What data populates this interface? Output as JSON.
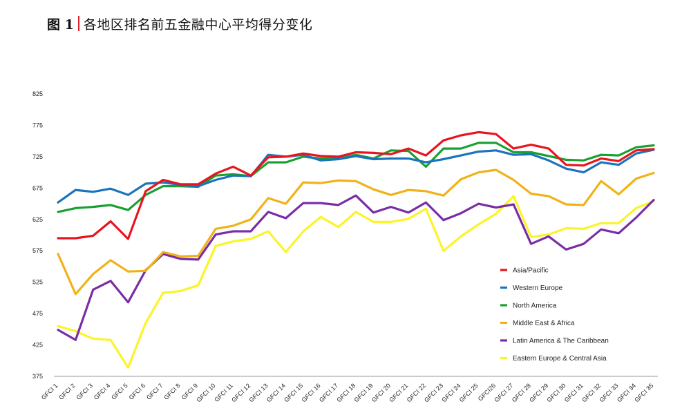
{
  "figure": {
    "number": "图 1",
    "title": "各地区排名前五金融中心平均得分变化"
  },
  "chart_data": {
    "type": "line",
    "title": "",
    "xlabel": "",
    "ylabel": "",
    "ylim": [
      375,
      825
    ],
    "yticks": [
      375,
      425,
      475,
      525,
      575,
      625,
      675,
      725,
      775,
      825
    ],
    "grid": false,
    "legend_position": "right",
    "categories": [
      "GFCI 1",
      "GFCI 2",
      "GFCI 3",
      "GFCI 4",
      "GFCI 5",
      "GFCI 6",
      "GFCI 7",
      "GFCI 8",
      "GFCI 9",
      "GFCI 10",
      "GFCI 11",
      "GFCI 12",
      "GFCI 13",
      "GFCI 14",
      "GFCI 15",
      "GFCI 16",
      "GFCI 17",
      "GFCI 18",
      "GFCI 19",
      "GFCI 20",
      "GFCI 21",
      "GFCI 22",
      "GFCI 23",
      "GFCI 24",
      "GFCI 25",
      "GFCI26",
      "GFCI 27",
      "GFCI 28",
      "GFCI 29",
      "GFCI 30",
      "GFCI 31",
      "GFCI 32",
      "GFCI 33",
      "GFCI 34",
      "GFCI 35"
    ],
    "series": [
      {
        "name": "Asia/Pacific",
        "color": "#e8141e",
        "values": [
          595,
          595,
          599,
          622,
          594,
          670,
          688,
          681,
          681,
          698,
          709,
          695,
          724,
          725,
          730,
          726,
          725,
          732,
          731,
          729,
          738,
          727,
          751,
          759,
          764,
          761,
          738,
          744,
          738,
          712,
          711,
          722,
          718,
          735,
          737
        ]
      },
      {
        "name": "Western Europe",
        "color": "#1a73bd",
        "values": [
          652,
          672,
          669,
          674,
          664,
          682,
          684,
          680,
          678,
          688,
          695,
          694,
          728,
          725,
          728,
          719,
          721,
          726,
          721,
          722,
          722,
          716,
          721,
          727,
          733,
          735,
          728,
          729,
          719,
          706,
          700,
          716,
          712,
          730,
          736
        ]
      },
      {
        "name": "North America",
        "color": "#1aa032",
        "values": [
          637,
          643,
          645,
          648,
          640,
          664,
          678,
          678,
          677,
          695,
          697,
          694,
          716,
          716,
          725,
          722,
          722,
          728,
          722,
          735,
          734,
          709,
          738,
          738,
          747,
          747,
          732,
          732,
          726,
          720,
          719,
          728,
          727,
          740,
          743
        ]
      },
      {
        "name": "Middle East & Africa",
        "color": "#f0b217",
        "values": [
          570,
          506,
          538,
          560,
          542,
          543,
          573,
          566,
          567,
          610,
          615,
          625,
          659,
          650,
          684,
          683,
          687,
          686,
          673,
          664,
          672,
          670,
          663,
          689,
          700,
          704,
          688,
          666,
          662,
          649,
          648,
          686,
          665,
          690,
          699
        ]
      },
      {
        "name": "Latin America & The Caribbean",
        "color": "#7a2da6",
        "values": [
          449,
          433,
          513,
          527,
          493,
          544,
          570,
          562,
          561,
          601,
          606,
          606,
          637,
          627,
          651,
          651,
          648,
          663,
          636,
          645,
          636,
          652,
          624,
          635,
          650,
          644,
          649,
          586,
          598,
          577,
          586,
          609,
          603,
          628,
          656
        ]
      },
      {
        "name": "Eastern Europe & Central Asia",
        "color": "#fbf427",
        "values": [
          455,
          447,
          435,
          433,
          389,
          460,
          508,
          511,
          520,
          583,
          590,
          594,
          606,
          573,
          606,
          629,
          613,
          637,
          621,
          621,
          626,
          642,
          575,
          598,
          617,
          634,
          662,
          597,
          601,
          611,
          610,
          619,
          619,
          643,
          654
        ]
      }
    ]
  }
}
